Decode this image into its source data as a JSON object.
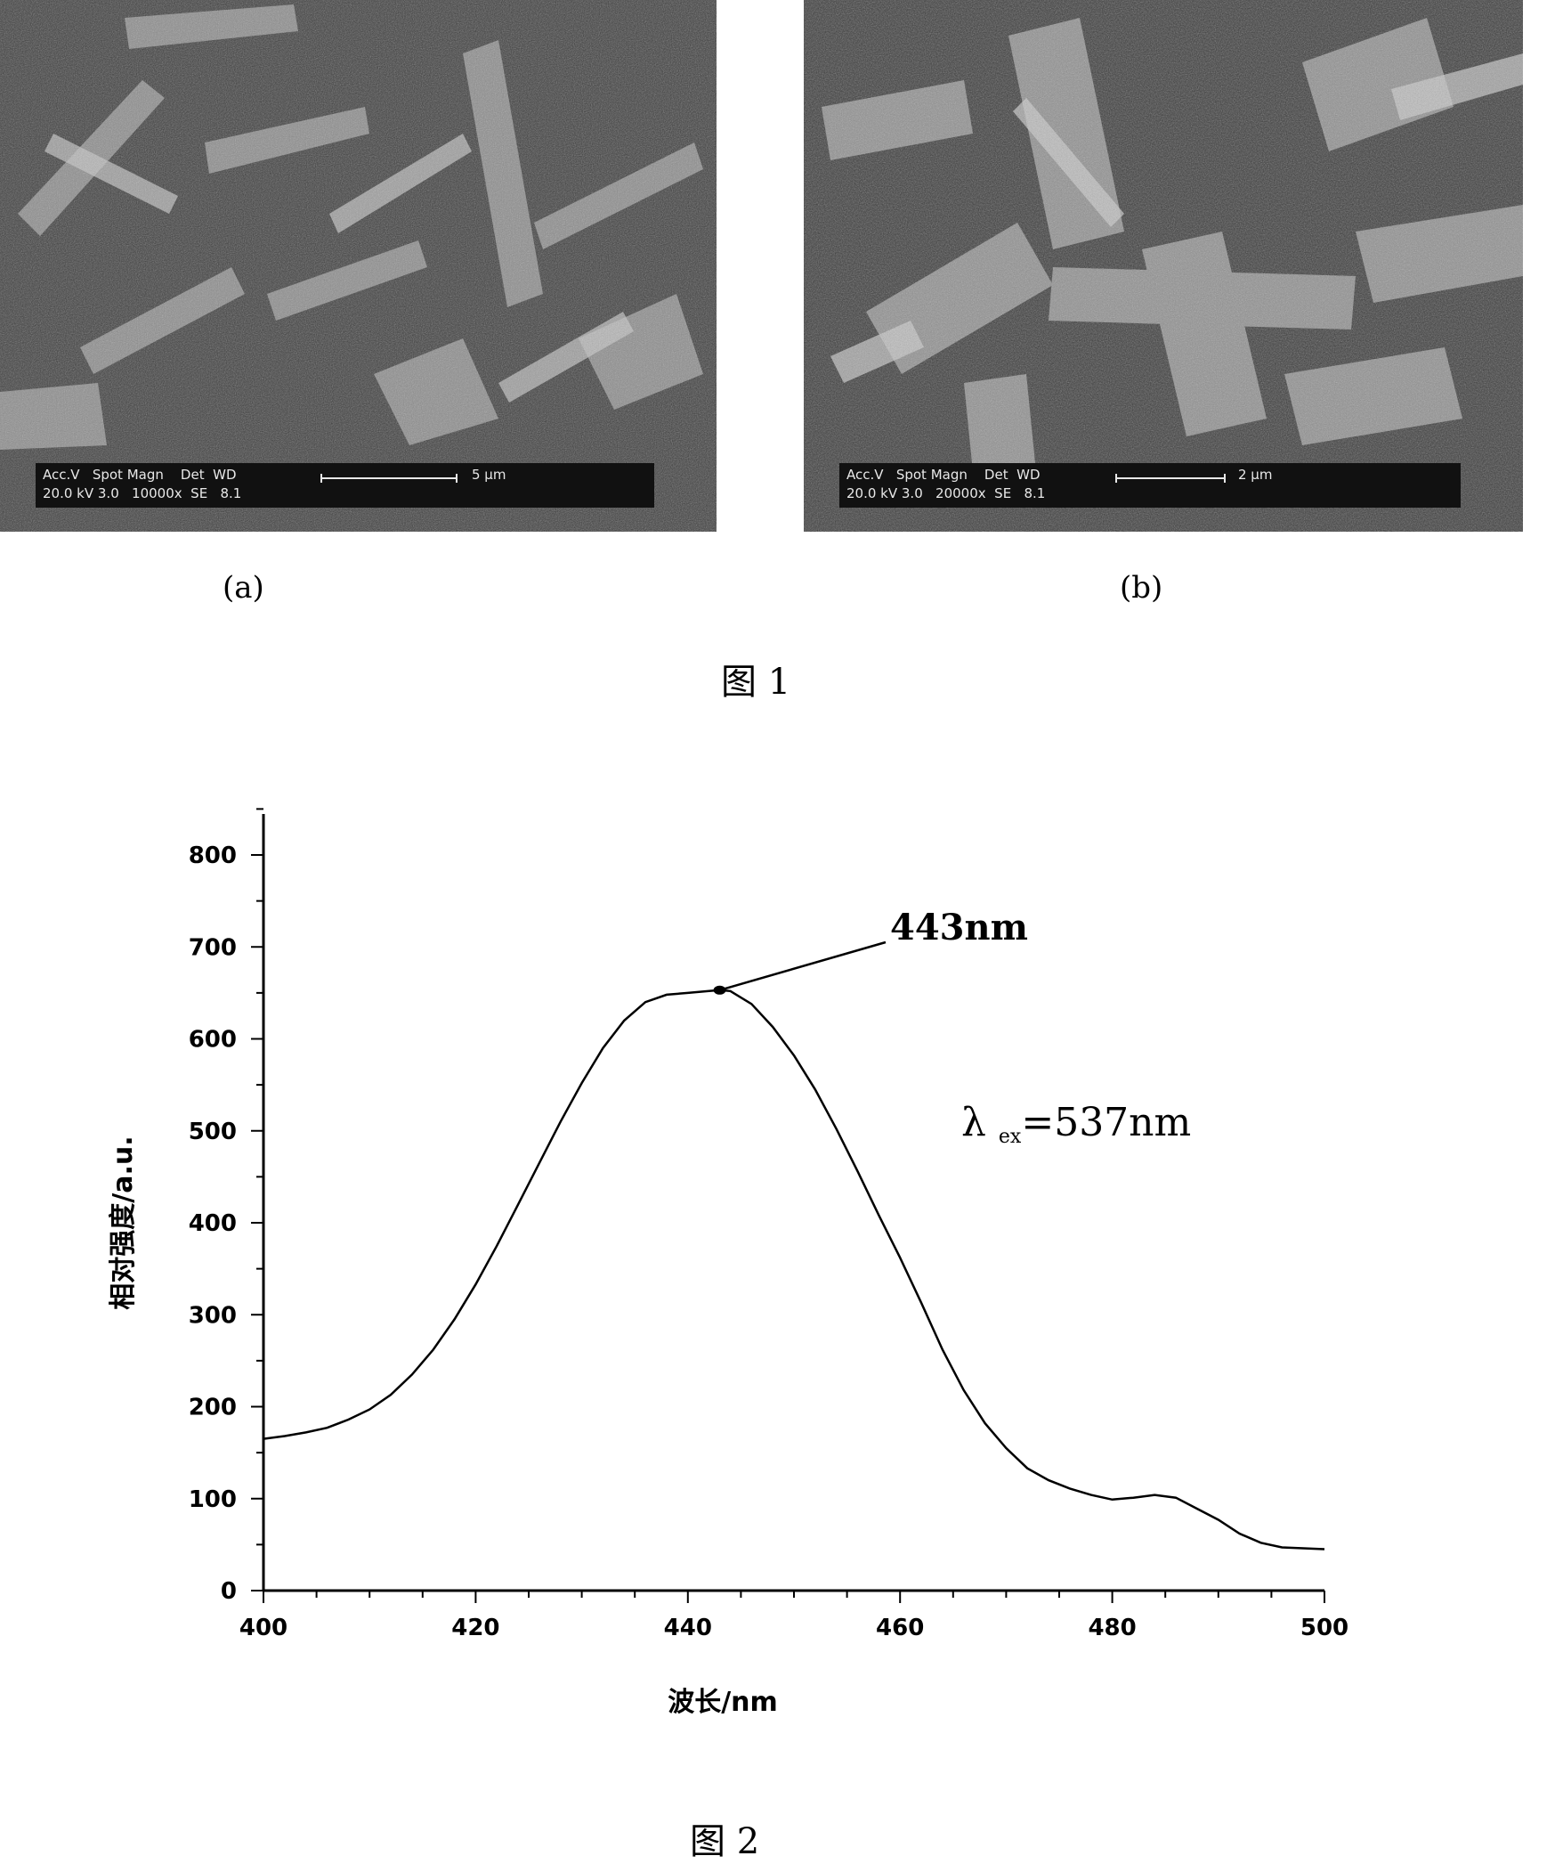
{
  "sem_images": [
    {
      "panel_label": "(a)",
      "databar_header": "Acc.V   Spot Magn    Det  WD",
      "databar_values": "20.0 kV 3.0   10000x  SE   8.1",
      "scale_label": "5 μm"
    },
    {
      "panel_label": "(b)",
      "databar_header": "Acc.V   Spot Magn    Det  WD",
      "databar_values": "20.0 kV 3.0   20000x  SE   8.1",
      "scale_label": "2 μm"
    }
  ],
  "figure1_caption": "图 1",
  "figure2_caption": "图 2",
  "chart_data": {
    "type": "line",
    "xlabel": "波长/nm",
    "ylabel": "相对强度/a.u.",
    "xlim": [
      400,
      500
    ],
    "ylim": [
      0,
      850
    ],
    "xticks": [
      400,
      420,
      440,
      460,
      480,
      500
    ],
    "yticks": [
      0,
      100,
      200,
      300,
      400,
      500,
      600,
      700,
      800
    ],
    "grid": false,
    "legend": "none",
    "line_color": "#000000",
    "series": [
      {
        "x": [
          400,
          402,
          404,
          406,
          408,
          410,
          412,
          414,
          416,
          418,
          420,
          422,
          424,
          426,
          428,
          430,
          432,
          434,
          436,
          438,
          440,
          442,
          443,
          444,
          446,
          448,
          450,
          452,
          454,
          456,
          458,
          460,
          462,
          464,
          466,
          468,
          470,
          472,
          474,
          476,
          478,
          480,
          482,
          484,
          486,
          488,
          490,
          492,
          494,
          496,
          498,
          500
        ],
        "y": [
          165,
          168,
          172,
          177,
          186,
          197,
          213,
          235,
          262,
          295,
          333,
          375,
          420,
          465,
          510,
          552,
          590,
          620,
          640,
          648,
          650,
          652,
          653,
          652,
          638,
          613,
          582,
          545,
          502,
          456,
          408,
          362,
          313,
          262,
          218,
          182,
          155,
          133,
          120,
          111,
          104,
          99,
          101,
          104,
          101,
          89,
          77,
          62,
          52,
          47,
          46,
          45
        ]
      }
    ],
    "annotations": [
      {
        "text": "443nm",
        "x": 443,
        "y": 653
      },
      {
        "text_symbol": "λ",
        "text_subscript": "ex",
        "text_suffix": "=537nm"
      }
    ]
  }
}
